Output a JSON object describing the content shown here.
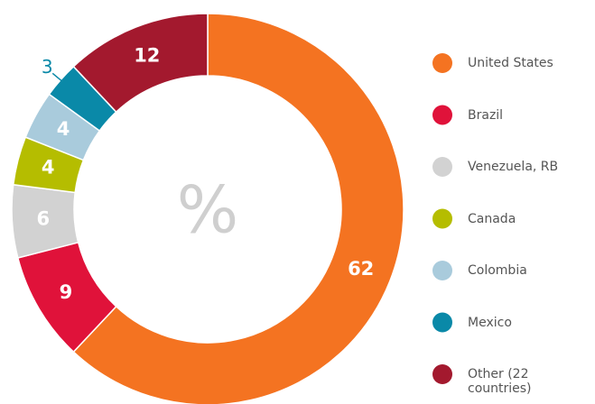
{
  "chart_data": {
    "type": "donut",
    "center_label": "%",
    "categories": [
      "United States",
      "Brazil",
      "Venezuela, RB",
      "Canada",
      "Colombia",
      "Mexico",
      "Other (22 countries)"
    ],
    "values": [
      62,
      9,
      6,
      4,
      4,
      3,
      12
    ],
    "colors": [
      "#f47321",
      "#e0123a",
      "#d2d2d2",
      "#b5bd00",
      "#a9cbdc",
      "#0a89a8",
      "#a3192e"
    ]
  }
}
